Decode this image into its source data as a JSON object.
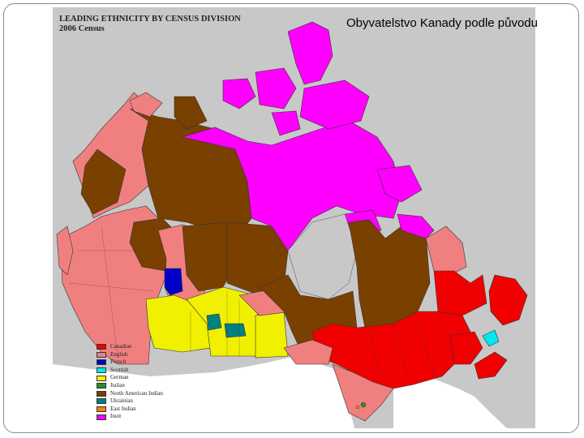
{
  "slide": {
    "title": "Obyvatelstvo Kanady podle původu"
  },
  "map": {
    "title_line1": "LEADING ETHNICITY BY CENSUS DIVISION",
    "title_line2": "2006 Census",
    "colors": {
      "water": "#c8c8c8",
      "border": "#333333",
      "usa": "#ffffff"
    },
    "legend": [
      {
        "label": "Canadian",
        "color": "#f00000"
      },
      {
        "label": "English",
        "color": "#f08080"
      },
      {
        "label": "French",
        "color": "#0000c8"
      },
      {
        "label": "Scottish",
        "color": "#00e8f0"
      },
      {
        "label": "German",
        "color": "#f0f000"
      },
      {
        "label": "Italian",
        "color": "#2e8b2e"
      },
      {
        "label": "North American Indian",
        "color": "#7a4000"
      },
      {
        "label": "Ukrainian",
        "color": "#008080"
      },
      {
        "label": "East Indian",
        "color": "#ff8000"
      },
      {
        "label": "Inuit",
        "color": "#ff00ff"
      }
    ]
  }
}
